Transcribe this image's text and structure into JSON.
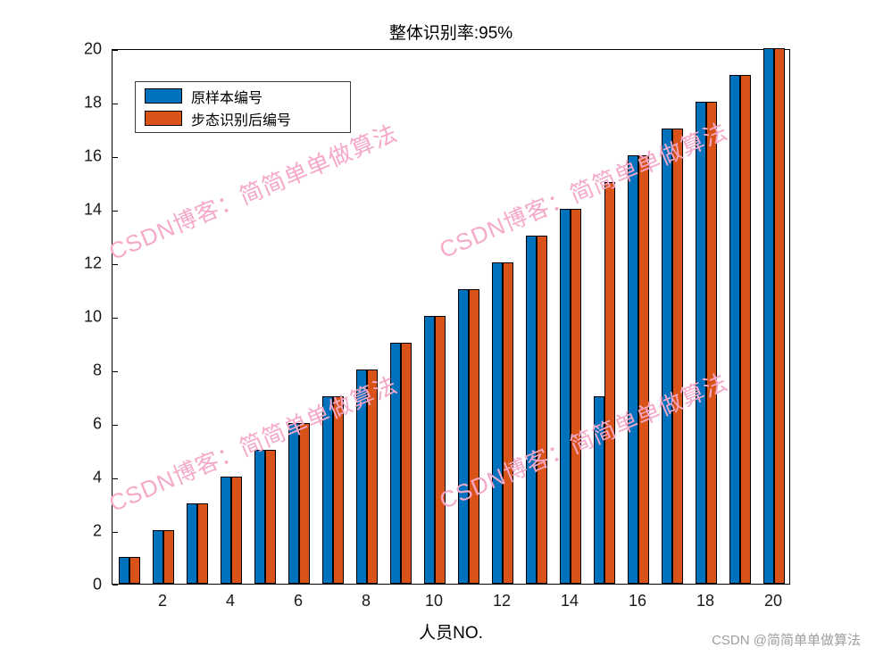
{
  "chart_data": {
    "type": "bar",
    "title": "整体识别率:95%",
    "xlabel": "人员NO.",
    "ylabel": "",
    "categories": [
      1,
      2,
      3,
      4,
      5,
      6,
      7,
      8,
      9,
      10,
      11,
      12,
      13,
      14,
      15,
      16,
      17,
      18,
      19,
      20
    ],
    "series": [
      {
        "name": "原样本编号",
        "color": "#0072BD",
        "values": [
          1,
          2,
          3,
          4,
          5,
          6,
          7,
          8,
          9,
          10,
          11,
          12,
          13,
          14,
          7,
          16,
          17,
          18,
          19,
          20
        ]
      },
      {
        "name": "步态识别后编号",
        "color": "#D95319",
        "values": [
          1,
          2,
          3,
          4,
          5,
          6,
          7,
          8,
          9,
          10,
          11,
          12,
          13,
          14,
          15,
          16,
          17,
          18,
          19,
          20
        ]
      }
    ],
    "ylim": [
      0,
      20
    ],
    "yticks": [
      0,
      2,
      4,
      6,
      8,
      10,
      12,
      14,
      16,
      18,
      20
    ],
    "xticks": [
      2,
      4,
      6,
      8,
      10,
      12,
      14,
      16,
      18,
      20
    ],
    "grid": false,
    "legend_position": "top-left-inside"
  },
  "legend": [
    {
      "label": "原样本编号",
      "color": "#0072BD"
    },
    {
      "label": "步态识别后编号",
      "color": "#D95319"
    }
  ],
  "watermark": {
    "diagonal_text": "CSDN博客：简简单单做算法",
    "diagonal_color": "#F5A9C9",
    "corner_text": "CSDN @简简单单做算法",
    "corner_color": "#9E9E9E"
  }
}
